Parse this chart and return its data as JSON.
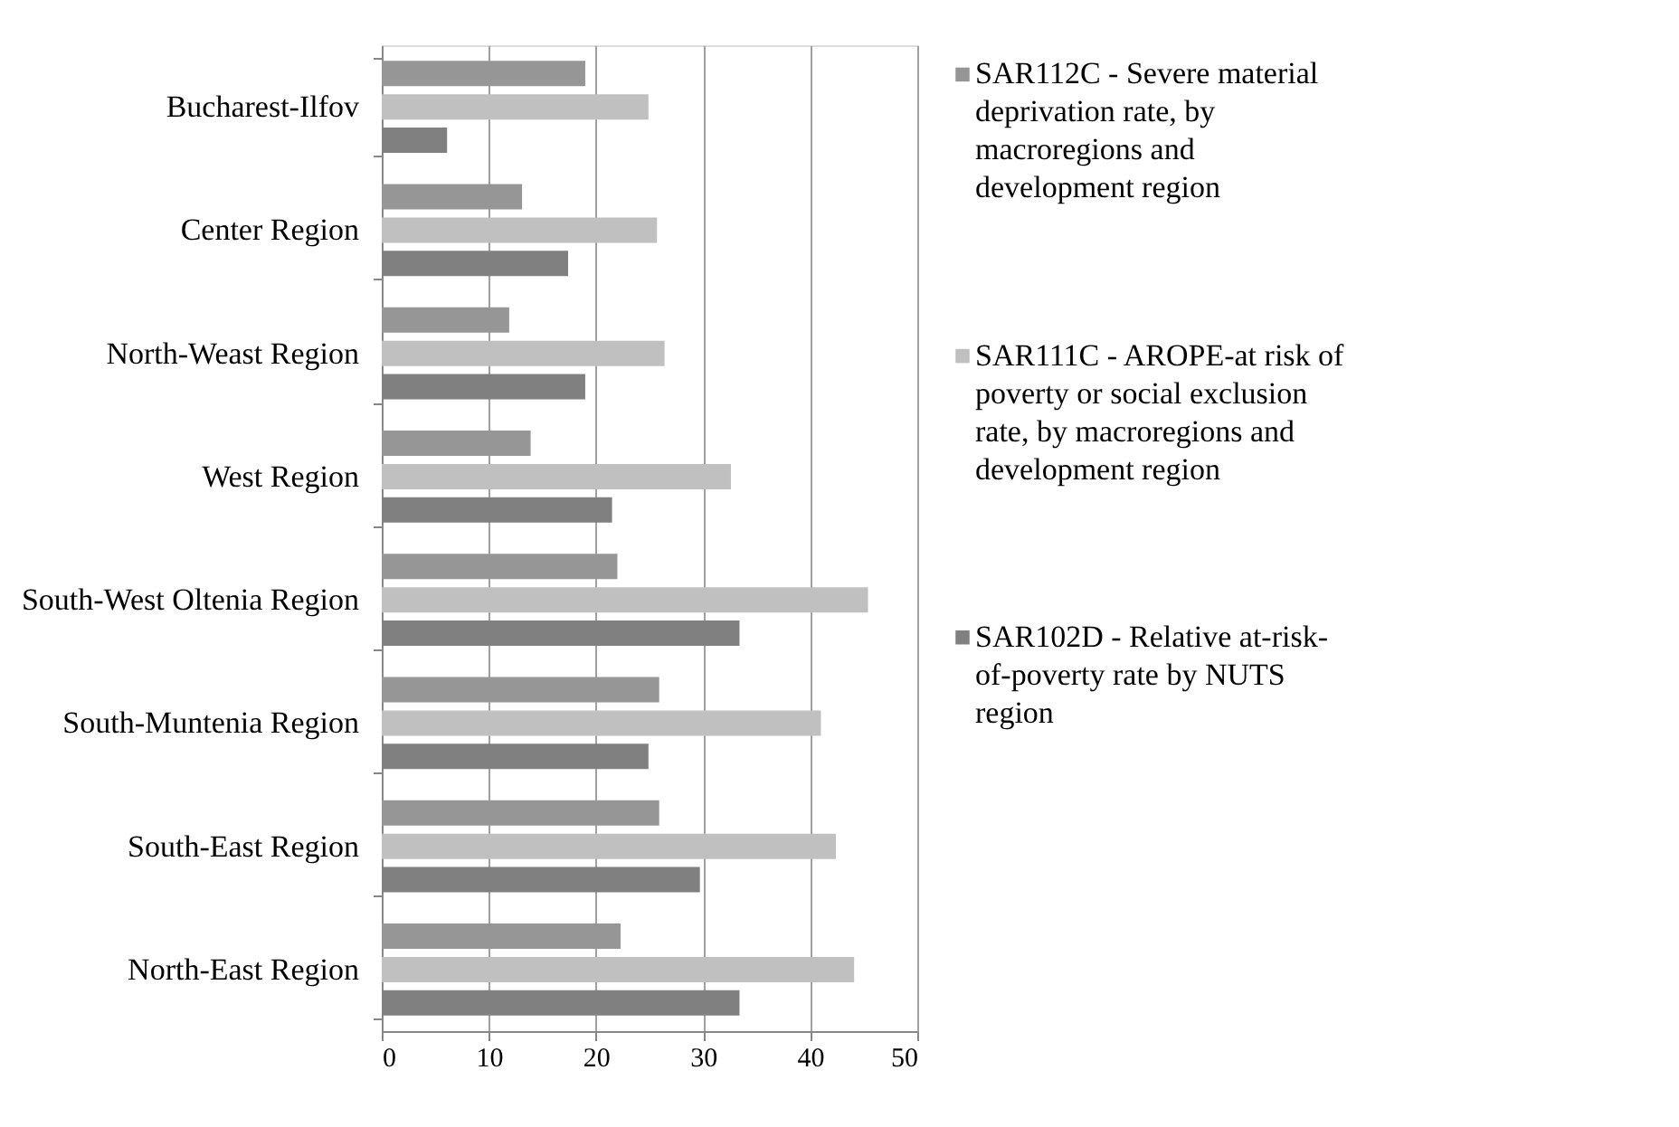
{
  "chart_data": {
    "type": "bar",
    "orientation": "horizontal",
    "categories": [
      "Bucharest-Ilfov",
      "Center Region",
      "North-Weast Region",
      "West Region",
      "South-West Oltenia Region",
      "South-Muntenia Region",
      "South-East Region",
      "North-East Region"
    ],
    "series": [
      {
        "name": "SAR112C - Severe material deprivation rate, by macroregions and development region",
        "color": "#969696",
        "values": [
          19.0,
          13.1,
          11.9,
          13.9,
          22.0,
          25.9,
          25.9,
          22.3
        ]
      },
      {
        "name": "SAR111C - AROPE-at risk of poverty or social exclusion rate, by macroregions and development region",
        "color": "#c0c0c0",
        "values": [
          24.9,
          25.7,
          26.4,
          32.6,
          45.4,
          41.0,
          42.4,
          44.1
        ]
      },
      {
        "name": "SAR102D - Relative at-risk-of-poverty rate by NUTS region",
        "color": "#808080",
        "values": [
          6.1,
          17.4,
          19.0,
          21.5,
          33.4,
          24.9,
          29.7,
          33.4
        ]
      }
    ],
    "xlim": [
      0,
      50
    ],
    "xticks": [
      0,
      10,
      20,
      30,
      40,
      50
    ],
    "grid": "x",
    "legend": "right"
  }
}
